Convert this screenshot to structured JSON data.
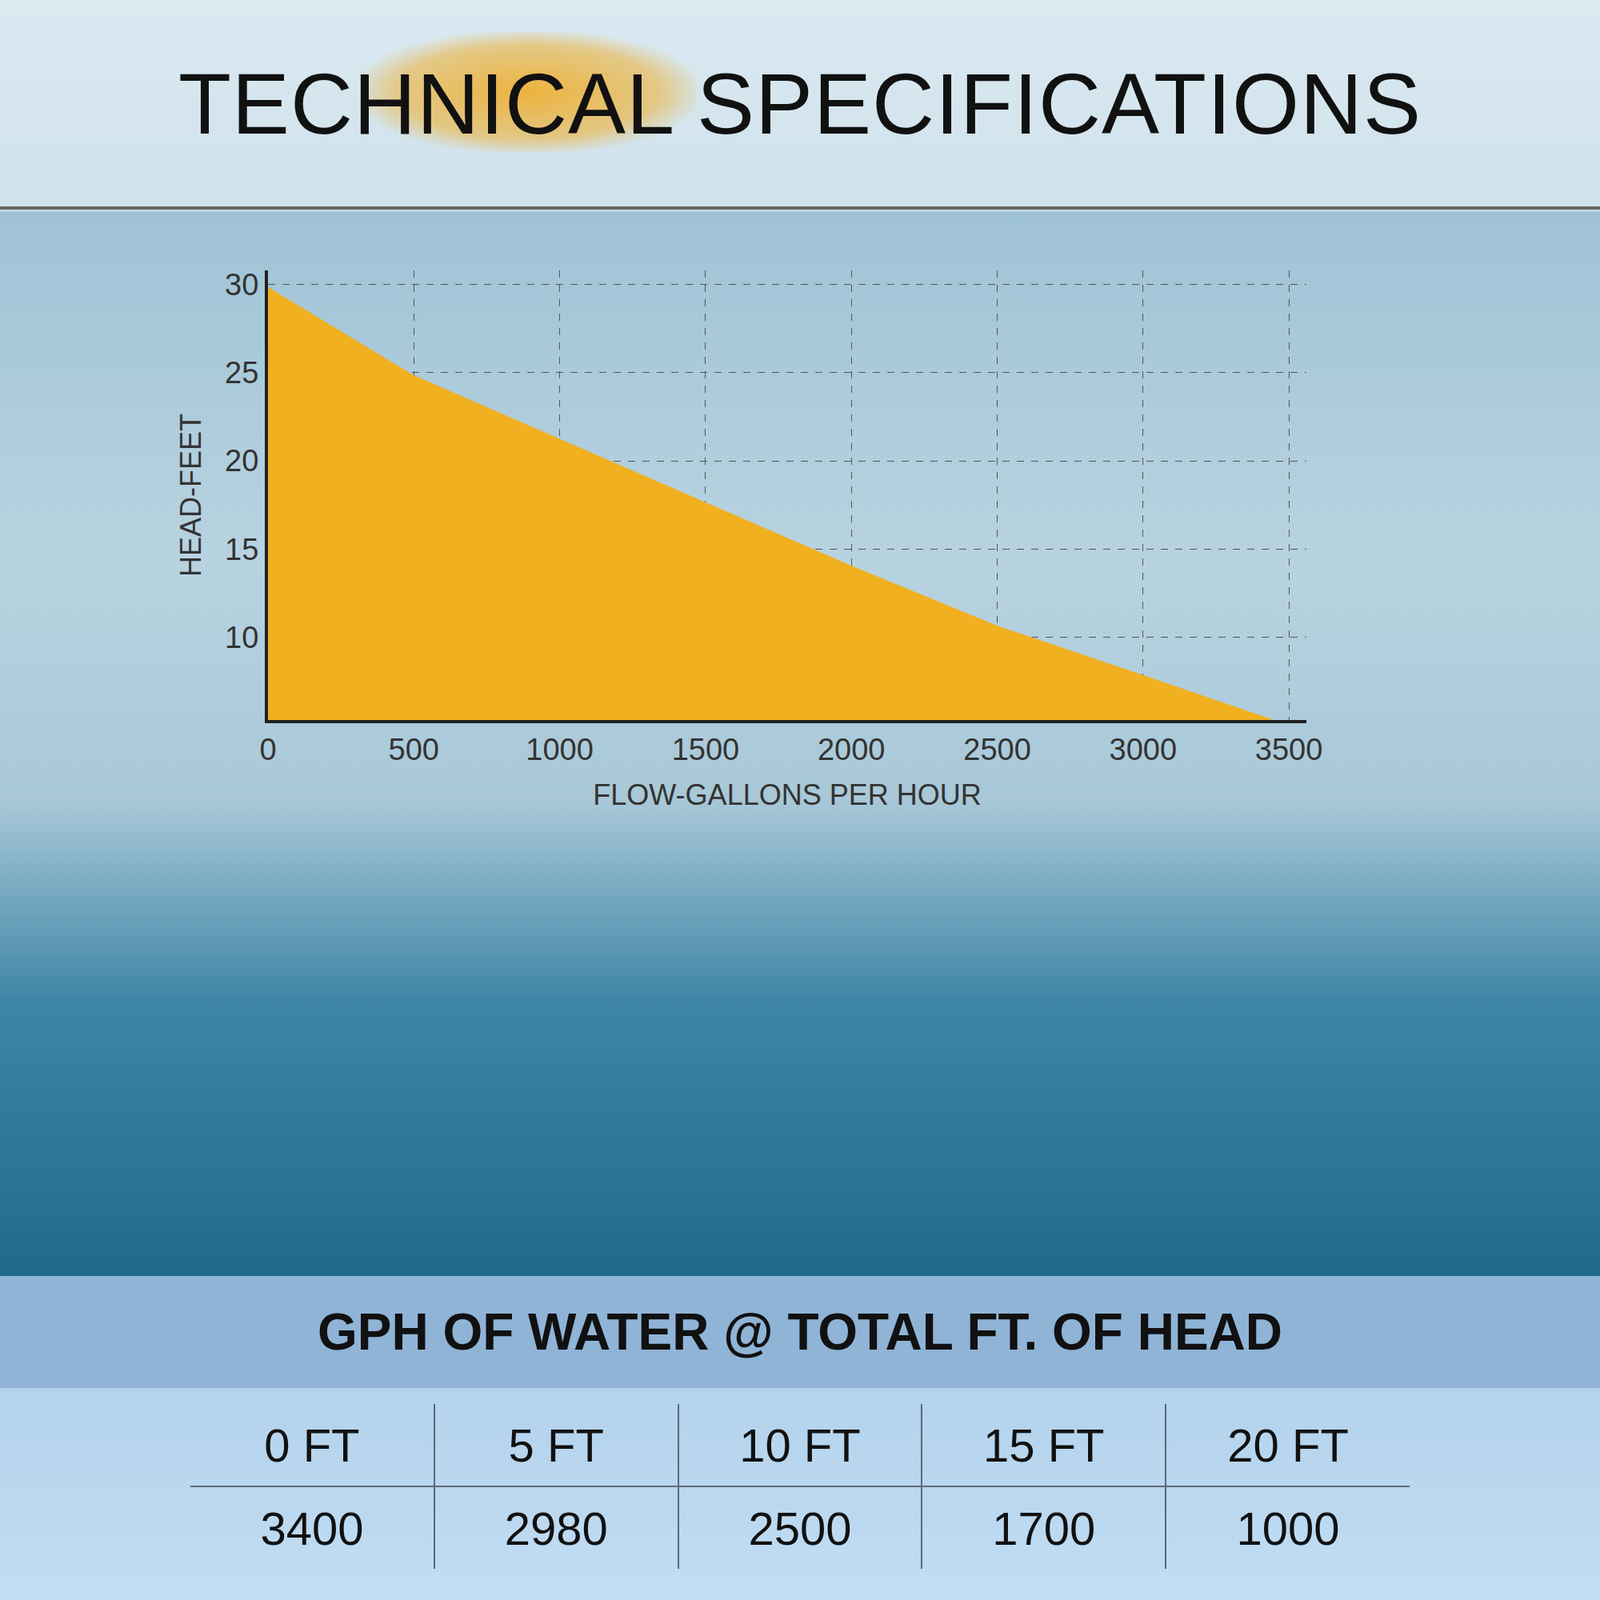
{
  "header": {
    "title": "TECHNICAL SPECIFICATIONS"
  },
  "chart_data": {
    "type": "area",
    "x_label": "FLOW-GALLONS PER HOUR",
    "y_label": "HEAD-FEET",
    "x": [
      0,
      500,
      1000,
      1500,
      2000,
      2500,
      3000,
      3440
    ],
    "values": [
      29.8,
      24.8,
      21.2,
      17.6,
      14.0,
      10.6,
      7.8,
      5.3
    ],
    "color": "#f0b020",
    "xlim": [
      0,
      3560
    ],
    "xticks": [
      0,
      500,
      1000,
      1500,
      2000,
      2500,
      3000,
      3500
    ],
    "ylim": [
      5.3,
      30.8
    ],
    "yticks": [
      10,
      15,
      20,
      25,
      30
    ],
    "grid": true
  },
  "table": {
    "title": "GPH OF WATER @ TOTAL FT. OF HEAD",
    "columns": [
      "0 FT",
      "5 FT",
      "10 FT",
      "15 FT",
      "20 FT"
    ],
    "rows": [
      [
        3400,
        2980,
        2500,
        1700,
        1000
      ]
    ]
  }
}
